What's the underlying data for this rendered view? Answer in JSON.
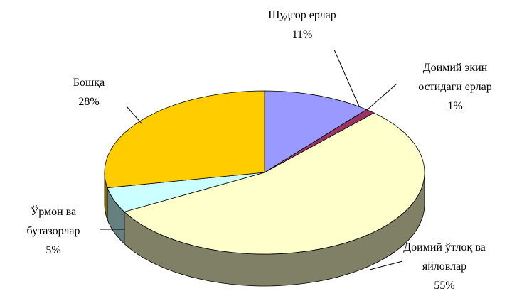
{
  "chart_data": {
    "type": "pie",
    "categories": [
      "Шудгор ерлар",
      "Доимий экин остидаги ерлар",
      "Доимий ўтлоқ ва яйловлар",
      "Ўрмон ва бутазорлар",
      "Бошқа"
    ],
    "values": [
      11,
      1,
      55,
      5,
      28
    ],
    "value_labels": [
      "11%",
      "1%",
      "55%",
      "5%",
      "28%"
    ],
    "colors": [
      "#9999ff",
      "#993366",
      "#ffffcc",
      "#ccffff",
      "#ffcc00"
    ]
  }
}
